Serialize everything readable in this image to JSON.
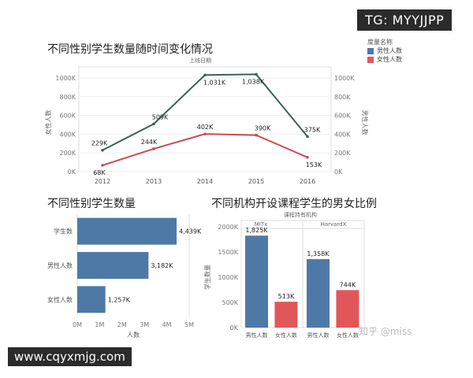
{
  "overlay": {
    "tag_top": "TG: MYYJJPP",
    "url_bottom": "www.cqyxmjg.com",
    "watermark": "知乎 @miss"
  },
  "colors": {
    "male": "#4e79a7",
    "female": "#e15759",
    "male_line": "#3f5f5a",
    "female_line": "#c84a55"
  },
  "chart_data": [
    {
      "type": "line",
      "title": "不同性别学生数量随时间变化情况",
      "subtitle": "上线日期",
      "ylabel_left": "女性人数",
      "ylabel_right": "男性人数",
      "x": [
        "2012",
        "2013",
        "2014",
        "2015",
        "2016"
      ],
      "yticks": [
        "0K",
        "200K",
        "400K",
        "600K",
        "800K",
        "1000K"
      ],
      "ylim": [
        0,
        1050000
      ],
      "series": [
        {
          "name": "男性人数",
          "values": [
            229000,
            509000,
            1031000,
            1038000,
            375000
          ],
          "labels": [
            "229K",
            "509K",
            "1,031K",
            "1,038K",
            "375K"
          ]
        },
        {
          "name": "女性人数",
          "values": [
            68000,
            244000,
            402000,
            390000,
            153000
          ],
          "labels": [
            "68K",
            "244K",
            "402K",
            "390K",
            "153K"
          ]
        }
      ],
      "legend": {
        "title": "度量名称",
        "placement": "top-right",
        "items": [
          "男性人数",
          "女性人数"
        ]
      },
      "grid": true
    },
    {
      "type": "bar",
      "orientation": "horizontal",
      "title": "不同性别学生数量",
      "categories": [
        "学生数",
        "男性人数",
        "女性人数"
      ],
      "values": [
        4439000,
        3182000,
        1257000
      ],
      "labels": [
        "4,439K",
        "3,182K",
        "1,257K"
      ],
      "xticks": [
        "0M",
        "1M",
        "2M",
        "3M",
        "4M",
        "5M"
      ],
      "xlim": [
        0,
        5000000
      ],
      "xlabel": "人数"
    },
    {
      "type": "bar",
      "title": "不同机构开设课程学生的男女比例",
      "subtitle": "课程持有机构",
      "panels": [
        {
          "name": "MITx",
          "categories": [
            "男性人数",
            "女性人数"
          ],
          "values": [
            1825000,
            513000
          ],
          "labels": [
            "1,825K",
            "513K"
          ]
        },
        {
          "name": "HarvardX",
          "categories": [
            "男性人数",
            "女性人数"
          ],
          "values": [
            1358000,
            744000
          ],
          "labels": [
            "1,358K",
            "744K"
          ]
        }
      ],
      "ylabel": "学生数量",
      "yticks": [
        "0K",
        "500K",
        "1000K",
        "1500K",
        "2000K"
      ],
      "ylim": [
        0,
        2000000
      ]
    }
  ]
}
